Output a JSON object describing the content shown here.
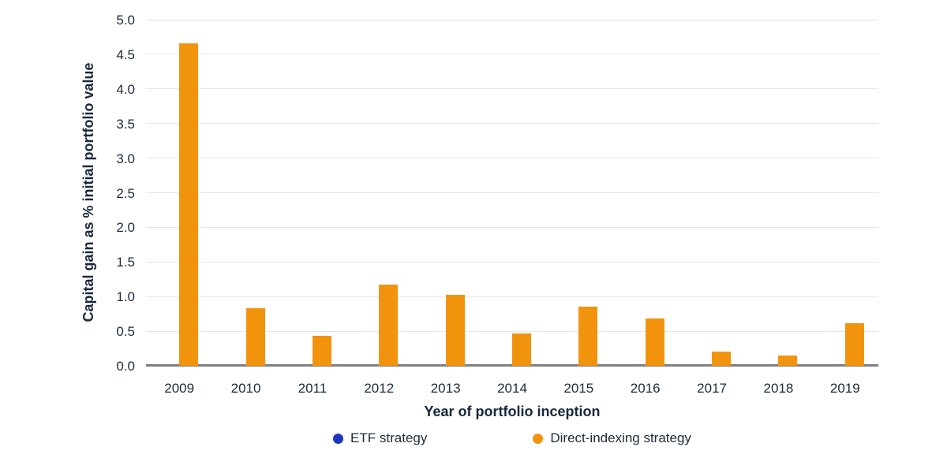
{
  "chart_data": {
    "type": "bar",
    "title": "",
    "xlabel": "Year of portfolio inception",
    "ylabel": "Capital gain as % initial portfolio value",
    "categories": [
      "2009",
      "2010",
      "2011",
      "2012",
      "2013",
      "2014",
      "2015",
      "2016",
      "2017",
      "2018",
      "2019"
    ],
    "series": [
      {
        "name": "ETF strategy",
        "color": "#1E35BE",
        "values": [
          0,
          0,
          0,
          0,
          0,
          0,
          0,
          0,
          0,
          0,
          0
        ]
      },
      {
        "name": "Direct-indexing strategy",
        "color": "#F2930E",
        "values": [
          4.66,
          0.83,
          0.43,
          1.17,
          1.02,
          0.47,
          0.85,
          0.68,
          0.21,
          0.15,
          0.62
        ]
      }
    ],
    "ylim": [
      0,
      5
    ],
    "ytick_labels": [
      "0.0",
      "0.5",
      "1.0",
      "1.5",
      "2.0",
      "2.5",
      "3.0",
      "3.5",
      "4.0",
      "4.5",
      "5.0"
    ],
    "grid": true,
    "legend_position": "bottom"
  },
  "colors": {
    "background": "#ffffff",
    "gridline": "#E6E6E6",
    "baseline": "#7F7F7F",
    "tick_text": "#1C2B39",
    "title_text": "#17263B"
  }
}
